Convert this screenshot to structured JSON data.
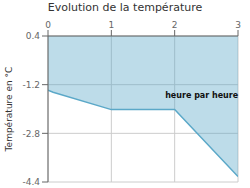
{
  "chart_data": {
    "type": "area",
    "title": "Evolution de la température",
    "ylabel": "Température en °C",
    "x": [
      0,
      0.08,
      1,
      2,
      3
    ],
    "values": [
      -1.38,
      -1.45,
      -2.02,
      -2.02,
      -4.22
    ],
    "color": "#5ba8c8",
    "xlim": [
      0,
      3
    ],
    "xticks": [
      0,
      1,
      2,
      3
    ],
    "ylim": [
      -4.4,
      0.4
    ],
    "yticks": [
      0.4,
      -1.2,
      -2.8,
      -4.4
    ],
    "grid": true,
    "annotations": [
      {
        "text": "heure par heure",
        "x": 1.85,
        "y": -1.55
      }
    ]
  }
}
